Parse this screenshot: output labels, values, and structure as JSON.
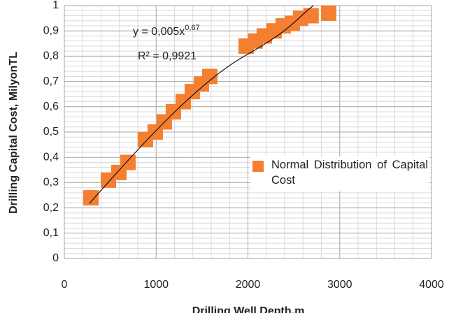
{
  "chart_data": {
    "type": "scatter",
    "x_label": "Drilling Well Depth,m",
    "y_label": "Drilling Capital Cost,  MilyonTL",
    "equation": {
      "text": "y = 0,005x",
      "exponent": "0,67"
    },
    "r_squared": "R² = 0,9921",
    "series": [
      {
        "name": "Normal Distribution of Capital Cost",
        "color": "#f47f30",
        "x": [
          290,
          480,
          594,
          693,
          883,
          990,
          1089,
          1188,
          1295,
          1394,
          1493,
          1584,
          1980,
          2079,
          2178,
          2285,
          2384,
          2483,
          2574,
          2688,
          2879
        ],
        "values": [
          0.24,
          0.31,
          0.34,
          0.38,
          0.47,
          0.5,
          0.54,
          0.58,
          0.62,
          0.66,
          0.69,
          0.72,
          0.84,
          0.86,
          0.88,
          0.9,
          0.92,
          0.93,
          0.95,
          0.96,
          0.97
        ]
      }
    ],
    "xlim": [
      0,
      4000
    ],
    "xticks": [
      0,
      1000,
      2000,
      3000,
      4000
    ],
    "ylim": [
      0,
      1
    ],
    "yticks": [
      0,
      {
        "value": 0.1,
        "label": "0,1"
      },
      {
        "value": 0.2,
        "label": "0,2"
      },
      {
        "value": 0.3,
        "label": "0,3"
      },
      {
        "value": 0.4,
        "label": "0,4"
      },
      {
        "value": 0.5,
        "label": "0,5"
      },
      {
        "value": 0.6,
        "label": "0,6"
      },
      {
        "value": 0.7,
        "label": "0,7"
      },
      {
        "value": 0.8,
        "label": "0,8"
      },
      {
        "value": 0.9,
        "label": "0,9"
      },
      1
    ],
    "grid": true,
    "legend": "right"
  }
}
